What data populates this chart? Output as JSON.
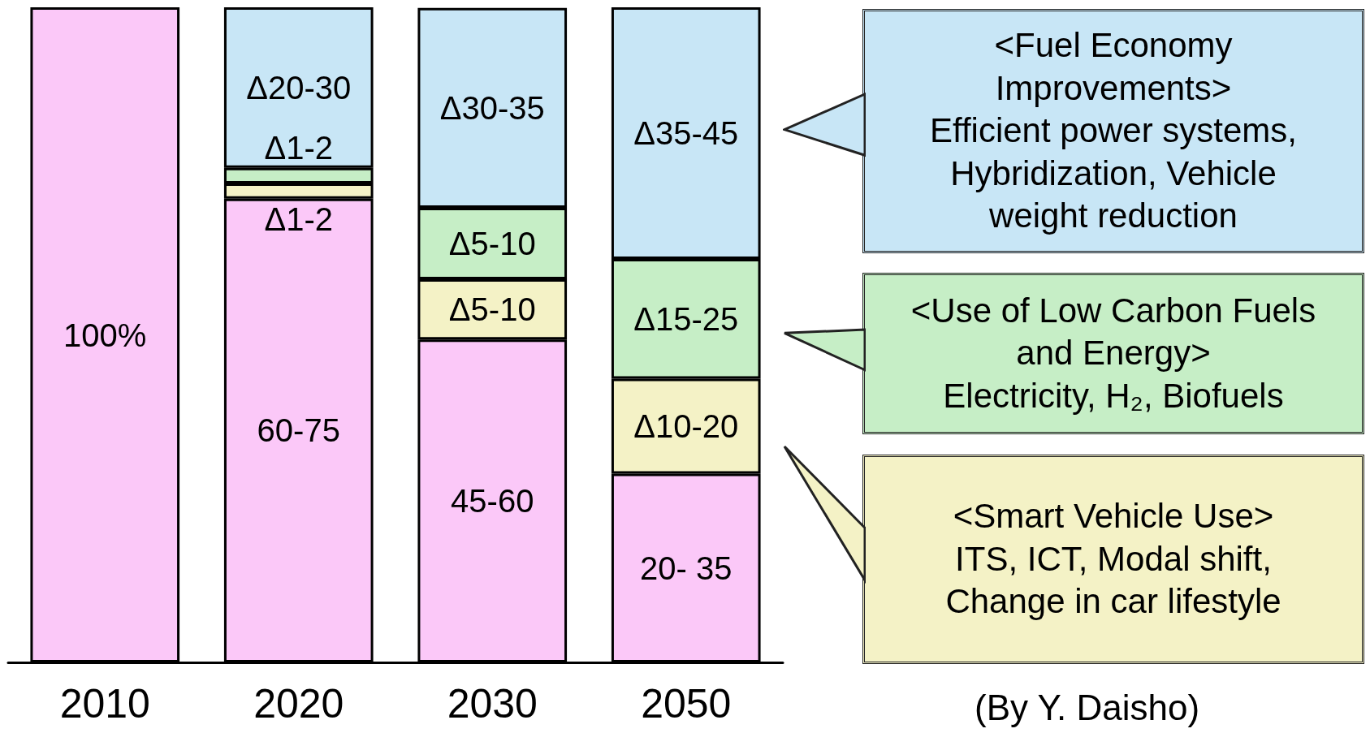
{
  "chart_data": {
    "type": "bar",
    "stacked": true,
    "tick_labels": "x",
    "ylim": [
      0,
      100
    ],
    "categories": [
      "2010",
      "2020",
      "2030",
      "2050"
    ],
    "series": [
      {
        "color": "#fbc8f8",
        "values": [
          100,
          70.8,
          49.3,
          28.8
        ],
        "value_labels": [
          "100%",
          "60-75",
          "45-60",
          "20- 35"
        ]
      },
      {
        "color": "#f4f2c6",
        "values": [
          null,
          2.3,
          9.2,
          14.5
        ],
        "value_labels": [
          null,
          "Δ1-2",
          "Δ5-10",
          "Δ10-20"
        ]
      },
      {
        "color": "#c6eec6",
        "values": [
          null,
          2.4,
          10.9,
          18.3
        ],
        "value_labels": [
          null,
          "Δ1-2",
          "Δ5-10",
          "Δ15-25"
        ]
      },
      {
        "color": "#c8e6f6",
        "values": [
          null,
          24.5,
          30.5,
          38.4
        ],
        "value_labels": [
          null,
          "Δ20-30",
          "Δ30-35",
          "Δ35-45"
        ]
      }
    ],
    "annotations": [
      "<Fuel Economy Improvements>\nEfficient power systems, Hybridization, Vehicle weight reduction",
      "<Use of Low Carbon Fuels and Energy>\nElectricity, H₂, Biofuels",
      "<Smart Vehicle Use>\nITS, ICT, Modal shift, Change in car lifestyle",
      "(By Y. Daisho)"
    ],
    "grid": false
  }
}
